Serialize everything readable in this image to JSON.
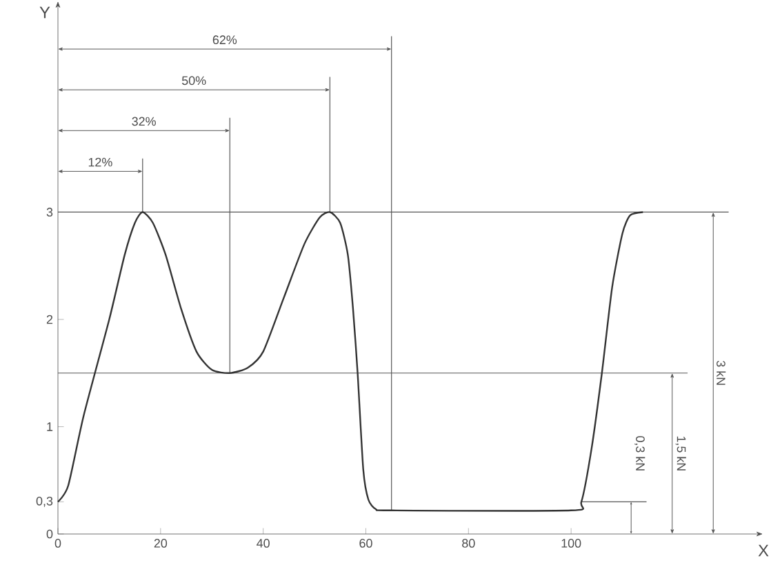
{
  "chart_data": {
    "type": "line",
    "xlabel": "X",
    "ylabel": "Y",
    "x": [
      0,
      2,
      5,
      10,
      13,
      15,
      16.5,
      18.5,
      21,
      24,
      27,
      30,
      33.5,
      37,
      40,
      44,
      48,
      51,
      53,
      55,
      56.5,
      57.5,
      58.4,
      59.5,
      60.5,
      62,
      65,
      100,
      102,
      104,
      106,
      108,
      110,
      111.5,
      114
    ],
    "values": [
      0.3,
      0.45,
      1.1,
      2.0,
      2.6,
      2.9,
      3,
      2.9,
      2.6,
      2.1,
      1.7,
      1.53,
      1.5,
      1.55,
      1.7,
      2.2,
      2.7,
      2.95,
      3,
      2.9,
      2.6,
      2.1,
      1.5,
      0.6,
      0.32,
      0.23,
      0.22,
      0.22,
      0.3,
      0.8,
      1.5,
      2.3,
      2.8,
      2.97,
      3
    ],
    "color": "#333333",
    "marker": "none",
    "line_style": "solid",
    "grid": false,
    "xlim": [
      0,
      136
    ],
    "ylim": [
      0,
      4.9
    ],
    "xticks": [
      0,
      20,
      40,
      60,
      80,
      100
    ],
    "yticks": [
      0,
      {
        "value": 0.3,
        "label": "0,3"
      },
      1,
      2,
      3
    ],
    "ref_lines": [
      {
        "axis": "y",
        "value": 3,
        "color": "#555555"
      },
      {
        "axis": "y",
        "value": 1.5,
        "color": "#555555"
      },
      {
        "axis": "y",
        "value": 0.3,
        "color": "#555555"
      },
      {
        "axis": "x",
        "value": 16.5,
        "color": "#555555"
      },
      {
        "axis": "x",
        "value": 33.5,
        "color": "#555555"
      },
      {
        "axis": "x",
        "value": 53,
        "color": "#555555"
      },
      {
        "axis": "x",
        "value": 65,
        "color": "#555555"
      }
    ],
    "annotations": [
      "3 kN",
      "1,5 kN",
      "0,3 kN",
      "12%",
      "32%",
      "50%",
      "62%"
    ]
  }
}
